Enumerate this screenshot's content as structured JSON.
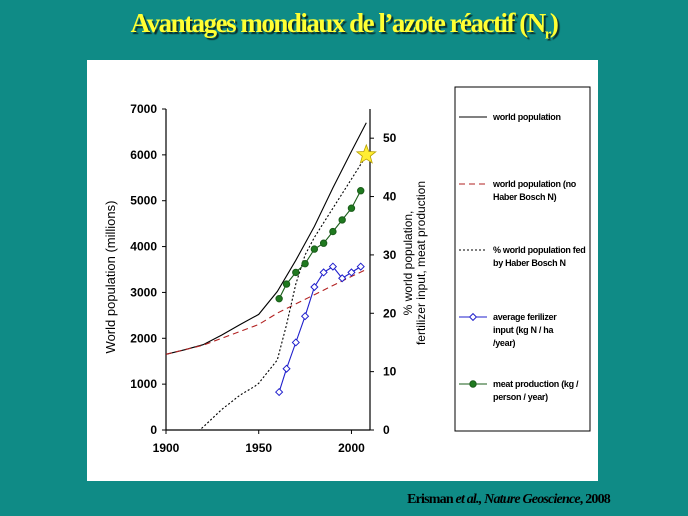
{
  "slide": {
    "title_main": "Avantages mondiaux de l’azote réactif (N",
    "title_sub": "r",
    "title_close": ")",
    "citation_author": "Erisman ",
    "citation_etal": "et al.",
    "citation_journal": ", Nature Geoscience",
    "citation_year": ", 2008"
  },
  "chart_data": {
    "type": "line",
    "xlabel": "",
    "ylabel": "World population  (millions)",
    "y2label_line1": "% world population,",
    "y2label_line2": "fertilizer input, meat production",
    "xlim": [
      1900,
      2010
    ],
    "ylim": [
      0,
      7000
    ],
    "y2lim": [
      0,
      55
    ],
    "x_ticks": [
      "1900",
      "1950",
      "2000"
    ],
    "y_ticks": [
      "0",
      "1000",
      "2000",
      "3000",
      "4000",
      "5000",
      "6000",
      "7000"
    ],
    "y2_ticks": [
      "0",
      "10",
      "20",
      "30",
      "40",
      "50"
    ],
    "grid": false,
    "legend_position": "right",
    "series": [
      {
        "name": "world population",
        "axis": "left",
        "style": "solid",
        "color": "#000000",
        "marker": "none",
        "x": [
          1900,
          1910,
          1920,
          1930,
          1940,
          1950,
          1960,
          1970,
          1980,
          1990,
          2000,
          2008
        ],
        "y": [
          1650,
          1750,
          1860,
          2070,
          2300,
          2520,
          3020,
          3700,
          4440,
          5280,
          6080,
          6700
        ]
      },
      {
        "name": "world population (no Haber Bosch N)",
        "axis": "left",
        "style": "dashed",
        "color": "#b22222",
        "marker": "none",
        "x": [
          1900,
          1910,
          1920,
          1930,
          1940,
          1950,
          1960,
          1970,
          1980,
          1990,
          2000,
          2008
        ],
        "y": [
          1650,
          1750,
          1850,
          2000,
          2150,
          2300,
          2550,
          2750,
          2950,
          3150,
          3350,
          3500
        ]
      },
      {
        "name": "% world population fed by Haber Bosch N",
        "axis": "right",
        "style": "dotted",
        "color": "#000000",
        "marker": "none",
        "x": [
          1900,
          1910,
          1918,
          1920,
          1925,
          1930,
          1940,
          1948,
          1950,
          1955,
          1960,
          1965,
          1970,
          1975,
          1980,
          1985,
          1990,
          1995,
          2000,
          2005,
          2008
        ],
        "y": [
          0,
          0,
          0,
          0.5,
          2,
          3.5,
          6,
          7.5,
          8,
          10,
          12,
          18,
          25,
          30,
          33,
          35.5,
          38,
          40.5,
          43,
          45.5,
          47
        ]
      },
      {
        "name": "average ferilizer input (kg N / ha /year)",
        "axis": "right",
        "style": "solid",
        "color": "#1f1fcc",
        "marker": "diamond",
        "x": [
          1961,
          1965,
          1970,
          1975,
          1980,
          1985,
          1990,
          1995,
          2000,
          2005
        ],
        "y": [
          6.5,
          10.5,
          15,
          19.5,
          24.5,
          27,
          28,
          26,
          27,
          28
        ]
      },
      {
        "name": "meat production (kg / person / year)",
        "axis": "right",
        "style": "solid",
        "color": "#1a5c1a",
        "marker": "circle",
        "x": [
          1961,
          1965,
          1970,
          1975,
          1980,
          1985,
          1990,
          1995,
          2000,
          2005
        ],
        "y": [
          22.5,
          25,
          27,
          28.5,
          31,
          32,
          34,
          36,
          38,
          41
        ]
      }
    ],
    "annotations": [
      {
        "type": "star",
        "color": "#ffee33",
        "x": 2008,
        "y": 6000
      }
    ]
  }
}
